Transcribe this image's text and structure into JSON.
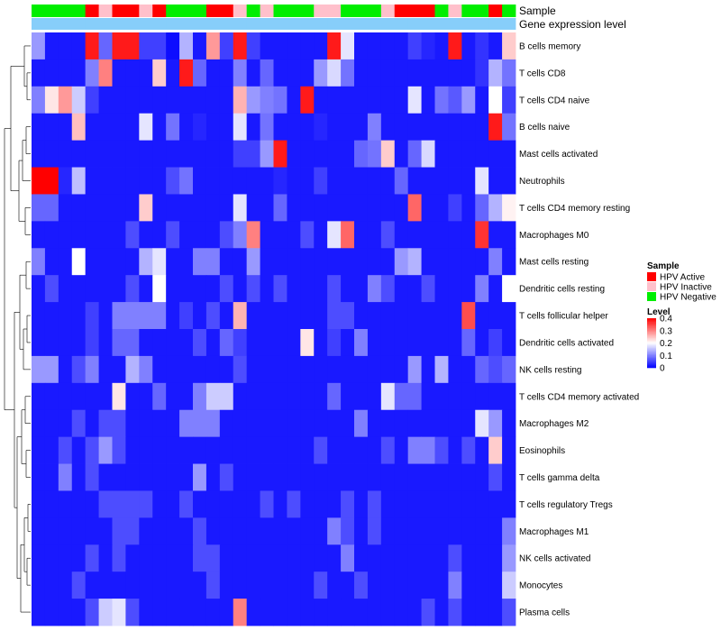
{
  "chart_data": {
    "type": "heatmap",
    "title": "",
    "annotation_labels": [
      "Sample",
      "Gene expression level"
    ],
    "rows": [
      "B cells memory",
      "T cells CD8",
      "T cells CD4 naive",
      "B cells naive",
      "Mast cells activated",
      "Neutrophils",
      "T cells CD4 memory resting",
      "Macrophages M0",
      "Mast cells resting",
      "Dendritic cells resting",
      "T cells follicular helper",
      "Dendritic cells activated",
      "NK cells resting",
      "T cells CD4 memory activated",
      "Macrophages M2",
      "Eosinophils",
      "T cells gamma delta",
      "T cells regulatory  Tregs",
      "Macrophages M1",
      "NK cells activated",
      "Monocytes",
      "Plasma cells"
    ],
    "columns": 36,
    "sample_groups": [
      "G",
      "G",
      "G",
      "G",
      "A",
      "I",
      "A",
      "A",
      "I",
      "A",
      "G",
      "G",
      "G",
      "A",
      "A",
      "I",
      "G",
      "I",
      "G",
      "G",
      "G",
      "I",
      "I",
      "G",
      "G",
      "G",
      "I",
      "A",
      "A",
      "A",
      "G",
      "I",
      "G",
      "G",
      "A",
      "G"
    ],
    "gene_expression_level": [
      "Light blue",
      "Light blue",
      "Light blue",
      "Light blue",
      "Light blue",
      "Light blue",
      "Light blue",
      "Light blue",
      "Light blue",
      "Light blue",
      "Light blue",
      "Light blue",
      "Light blue",
      "Light blue",
      "Light blue",
      "Light blue",
      "Light blue",
      "Light blue",
      "Light blue",
      "Light blue",
      "Light blue",
      "Light blue",
      "Light blue",
      "Light blue",
      "Light blue",
      "Light blue",
      "Light blue",
      "Light blue",
      "Light blue",
      "Light blue",
      "Light blue",
      "Light blue",
      "Light blue",
      "Light blue",
      "Light blue",
      "Light blue"
    ],
    "values": [
      [
        0.12,
        0.02,
        0.02,
        0.02,
        0.38,
        0.08,
        0.38,
        0.38,
        0.05,
        0.05,
        0.01,
        0.14,
        0.02,
        0.28,
        0.05,
        0.38,
        0.05,
        0.02,
        0.02,
        0.02,
        0.02,
        0.02,
        0.38,
        0.18,
        0.02,
        0.02,
        0.02,
        0.02,
        0.05,
        0.03,
        0.02,
        0.38,
        0.02,
        0.04,
        0.02,
        0.24
      ],
      [
        0.02,
        0.02,
        0.02,
        0.02,
        0.1,
        0.3,
        0.02,
        0.02,
        0.02,
        0.24,
        0.02,
        0.38,
        0.08,
        0.02,
        0.02,
        0.1,
        0.02,
        0.08,
        0.02,
        0.02,
        0.02,
        0.12,
        0.17,
        0.09,
        0.02,
        0.02,
        0.02,
        0.02,
        0.02,
        0.02,
        0.02,
        0.02,
        0.02,
        0.04,
        0.14,
        0.09
      ],
      [
        0.1,
        0.22,
        0.28,
        0.16,
        0.05,
        0.02,
        0.02,
        0.02,
        0.02,
        0.02,
        0.02,
        0.02,
        0.02,
        0.02,
        0.02,
        0.26,
        0.12,
        0.1,
        0.09,
        0.02,
        0.38,
        0.02,
        0.02,
        0.02,
        0.02,
        0.02,
        0.02,
        0.02,
        0.18,
        0.02,
        0.09,
        0.07,
        0.12,
        0.02,
        0.2,
        0.05
      ],
      [
        0.02,
        0.02,
        0.02,
        0.25,
        0.02,
        0.02,
        0.02,
        0.02,
        0.18,
        0.02,
        0.09,
        0.02,
        0.03,
        0.02,
        0.02,
        0.18,
        0.02,
        0.09,
        0.02,
        0.02,
        0.02,
        0.03,
        0.02,
        0.02,
        0.02,
        0.1,
        0.02,
        0.02,
        0.02,
        0.02,
        0.02,
        0.02,
        0.02,
        0.02,
        0.38,
        0.09
      ],
      [
        0.02,
        0.02,
        0.02,
        0.02,
        0.02,
        0.02,
        0.02,
        0.02,
        0.02,
        0.02,
        0.02,
        0.02,
        0.02,
        0.02,
        0.02,
        0.05,
        0.05,
        0.12,
        0.38,
        0.02,
        0.02,
        0.02,
        0.02,
        0.02,
        0.08,
        0.09,
        0.24,
        0.02,
        0.08,
        0.17,
        0.02,
        0.02,
        0.02,
        0.02,
        0.02,
        0.02
      ],
      [
        0.4,
        0.4,
        0.03,
        0.15,
        0.02,
        0.02,
        0.02,
        0.02,
        0.02,
        0.02,
        0.06,
        0.09,
        0.02,
        0.02,
        0.02,
        0.02,
        0.02,
        0.02,
        0.03,
        0.02,
        0.02,
        0.05,
        0.02,
        0.02,
        0.02,
        0.02,
        0.02,
        0.08,
        0.02,
        0.02,
        0.02,
        0.02,
        0.02,
        0.18,
        0.02,
        0.02
      ],
      [
        0.08,
        0.08,
        0.02,
        0.02,
        0.02,
        0.02,
        0.02,
        0.02,
        0.24,
        0.02,
        0.02,
        0.02,
        0.02,
        0.02,
        0.02,
        0.18,
        0.02,
        0.02,
        0.08,
        0.02,
        0.02,
        0.02,
        0.02,
        0.02,
        0.02,
        0.02,
        0.02,
        0.02,
        0.32,
        0.02,
        0.02,
        0.05,
        0.02,
        0.08,
        0.14,
        0.21
      ],
      [
        0.02,
        0.02,
        0.02,
        0.02,
        0.02,
        0.02,
        0.02,
        0.06,
        0.02,
        0.02,
        0.06,
        0.02,
        0.02,
        0.02,
        0.06,
        0.1,
        0.3,
        0.02,
        0.02,
        0.02,
        0.06,
        0.02,
        0.18,
        0.32,
        0.02,
        0.02,
        0.06,
        0.02,
        0.02,
        0.02,
        0.02,
        0.02,
        0.02,
        0.36,
        0.02,
        0.02
      ],
      [
        0.1,
        0.02,
        0.02,
        0.2,
        0.02,
        0.02,
        0.02,
        0.02,
        0.14,
        0.18,
        0.02,
        0.02,
        0.1,
        0.1,
        0.02,
        0.02,
        0.12,
        0.02,
        0.02,
        0.02,
        0.02,
        0.02,
        0.02,
        0.02,
        0.02,
        0.02,
        0.02,
        0.12,
        0.14,
        0.02,
        0.02,
        0.02,
        0.02,
        0.02,
        0.1,
        0.02
      ],
      [
        0.02,
        0.06,
        0.02,
        0.02,
        0.02,
        0.02,
        0.02,
        0.06,
        0.02,
        0.2,
        0.02,
        0.02,
        0.02,
        0.02,
        0.06,
        0.02,
        0.06,
        0.02,
        0.06,
        0.02,
        0.02,
        0.02,
        0.06,
        0.02,
        0.02,
        0.1,
        0.06,
        0.02,
        0.02,
        0.06,
        0.02,
        0.02,
        0.02,
        0.1,
        0.02,
        0.2
      ],
      [
        0.02,
        0.02,
        0.02,
        0.02,
        0.05,
        0.02,
        0.1,
        0.1,
        0.1,
        0.1,
        0.02,
        0.05,
        0.02,
        0.06,
        0.02,
        0.26,
        0.02,
        0.02,
        0.02,
        0.02,
        0.02,
        0.02,
        0.06,
        0.06,
        0.02,
        0.02,
        0.02,
        0.02,
        0.02,
        0.02,
        0.02,
        0.02,
        0.34,
        0.02,
        0.02,
        0.02
      ],
      [
        0.02,
        0.02,
        0.02,
        0.02,
        0.05,
        0.02,
        0.08,
        0.08,
        0.02,
        0.02,
        0.02,
        0.02,
        0.06,
        0.02,
        0.08,
        0.05,
        0.02,
        0.02,
        0.02,
        0.02,
        0.22,
        0.02,
        0.05,
        0.02,
        0.1,
        0.02,
        0.02,
        0.02,
        0.02,
        0.02,
        0.02,
        0.02,
        0.08,
        0.02,
        0.05,
        0.02
      ],
      [
        0.12,
        0.12,
        0.02,
        0.06,
        0.1,
        0.02,
        0.02,
        0.14,
        0.1,
        0.02,
        0.02,
        0.02,
        0.02,
        0.02,
        0.02,
        0.06,
        0.02,
        0.02,
        0.02,
        0.02,
        0.02,
        0.02,
        0.02,
        0.02,
        0.02,
        0.02,
        0.02,
        0.02,
        0.12,
        0.02,
        0.14,
        0.02,
        0.02,
        0.08,
        0.06,
        0.08
      ],
      [
        0.02,
        0.02,
        0.02,
        0.02,
        0.02,
        0.02,
        0.22,
        0.02,
        0.02,
        0.08,
        0.02,
        0.02,
        0.1,
        0.16,
        0.16,
        0.02,
        0.02,
        0.02,
        0.02,
        0.02,
        0.02,
        0.02,
        0.08,
        0.02,
        0.02,
        0.02,
        0.18,
        0.08,
        0.08,
        0.02,
        0.02,
        0.02,
        0.02,
        0.02,
        0.02,
        0.02
      ],
      [
        0.02,
        0.02,
        0.02,
        0.06,
        0.02,
        0.06,
        0.06,
        0.02,
        0.02,
        0.02,
        0.02,
        0.1,
        0.1,
        0.1,
        0.02,
        0.02,
        0.02,
        0.02,
        0.02,
        0.02,
        0.02,
        0.02,
        0.02,
        0.02,
        0.1,
        0.02,
        0.02,
        0.02,
        0.02,
        0.02,
        0.02,
        0.02,
        0.02,
        0.18,
        0.12,
        0.02
      ],
      [
        0.02,
        0.02,
        0.06,
        0.02,
        0.06,
        0.12,
        0.06,
        0.02,
        0.02,
        0.02,
        0.02,
        0.02,
        0.02,
        0.02,
        0.02,
        0.02,
        0.02,
        0.02,
        0.02,
        0.02,
        0.02,
        0.06,
        0.02,
        0.02,
        0.02,
        0.02,
        0.06,
        0.02,
        0.1,
        0.1,
        0.06,
        0.02,
        0.06,
        0.02,
        0.24,
        0.02
      ],
      [
        0.02,
        0.02,
        0.1,
        0.02,
        0.06,
        0.02,
        0.02,
        0.02,
        0.02,
        0.02,
        0.02,
        0.02,
        0.12,
        0.02,
        0.06,
        0.02,
        0.02,
        0.02,
        0.02,
        0.02,
        0.02,
        0.02,
        0.02,
        0.02,
        0.02,
        0.02,
        0.02,
        0.02,
        0.02,
        0.02,
        0.02,
        0.02,
        0.02,
        0.02,
        0.06,
        0.02
      ],
      [
        0.02,
        0.02,
        0.02,
        0.02,
        0.02,
        0.06,
        0.06,
        0.06,
        0.06,
        0.02,
        0.02,
        0.06,
        0.02,
        0.02,
        0.02,
        0.02,
        0.02,
        0.06,
        0.02,
        0.06,
        0.02,
        0.02,
        0.02,
        0.06,
        0.02,
        0.06,
        0.02,
        0.02,
        0.02,
        0.02,
        0.02,
        0.02,
        0.02,
        0.02,
        0.02,
        0.02
      ],
      [
        0.02,
        0.02,
        0.02,
        0.02,
        0.02,
        0.02,
        0.06,
        0.06,
        0.02,
        0.02,
        0.02,
        0.02,
        0.06,
        0.02,
        0.02,
        0.02,
        0.02,
        0.02,
        0.02,
        0.02,
        0.02,
        0.02,
        0.1,
        0.06,
        0.02,
        0.06,
        0.02,
        0.02,
        0.02,
        0.02,
        0.02,
        0.02,
        0.02,
        0.02,
        0.02,
        0.1
      ],
      [
        0.02,
        0.02,
        0.02,
        0.02,
        0.06,
        0.02,
        0.06,
        0.02,
        0.02,
        0.02,
        0.02,
        0.02,
        0.06,
        0.06,
        0.02,
        0.02,
        0.02,
        0.02,
        0.02,
        0.02,
        0.02,
        0.02,
        0.02,
        0.1,
        0.02,
        0.02,
        0.02,
        0.02,
        0.02,
        0.02,
        0.02,
        0.06,
        0.02,
        0.02,
        0.02,
        0.12
      ],
      [
        0.02,
        0.02,
        0.02,
        0.06,
        0.02,
        0.02,
        0.02,
        0.02,
        0.02,
        0.02,
        0.02,
        0.02,
        0.02,
        0.06,
        0.02,
        0.02,
        0.02,
        0.02,
        0.02,
        0.02,
        0.02,
        0.06,
        0.02,
        0.02,
        0.06,
        0.02,
        0.02,
        0.02,
        0.02,
        0.02,
        0.02,
        0.1,
        0.02,
        0.02,
        0.02,
        0.16
      ],
      [
        0.02,
        0.02,
        0.02,
        0.02,
        0.06,
        0.16,
        0.18,
        0.06,
        0.02,
        0.02,
        0.02,
        0.02,
        0.02,
        0.02,
        0.02,
        0.3,
        0.02,
        0.02,
        0.02,
        0.02,
        0.02,
        0.02,
        0.02,
        0.02,
        0.02,
        0.02,
        0.02,
        0.02,
        0.02,
        0.06,
        0.02,
        0.06,
        0.02,
        0.02,
        0.02,
        0.06
      ]
    ],
    "scale_min": 0,
    "scale_max": 0.4,
    "colors": {
      "low": "#0000FF",
      "mid": "#FFFFFF",
      "high": "#FF0000"
    },
    "legend": {
      "sample_title": "Sample",
      "sample_items": [
        {
          "key": "A",
          "label": "HPV Active",
          "color": "#FF0000"
        },
        {
          "key": "I",
          "label": "HPV Inactive",
          "color": "#FFC0CB"
        },
        {
          "key": "G",
          "label": "HPV Negative",
          "color": "#00EE00"
        }
      ],
      "gene_color": "#87CEFA",
      "level_title": "Level",
      "level_ticks": [
        "0.4",
        "0.3",
        "0.2",
        "0.1",
        "0"
      ],
      "level_tick_values": [
        0.4,
        0.3,
        0.2,
        0.1,
        0
      ]
    },
    "dendrogram": "hierarchical clustering of rows (left)"
  }
}
